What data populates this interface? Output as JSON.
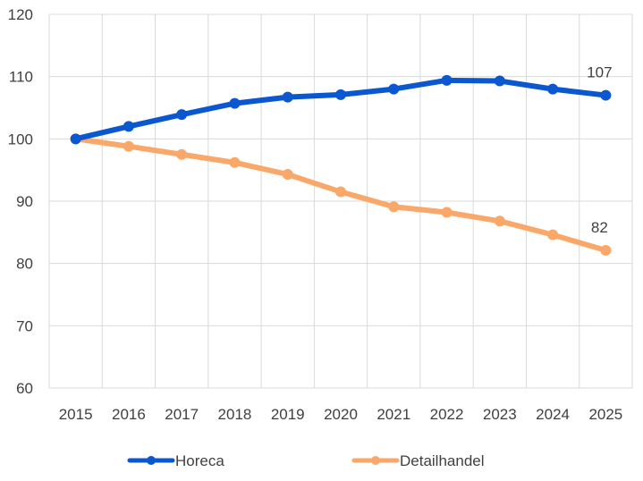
{
  "chart_data": {
    "type": "line",
    "title": "",
    "xlabel": "",
    "ylabel": "",
    "x": [
      2015,
      2016,
      2017,
      2018,
      2019,
      2020,
      2021,
      2022,
      2023,
      2024,
      2025
    ],
    "ylim": [
      60,
      120
    ],
    "yticks": [
      60,
      70,
      80,
      90,
      100,
      110,
      120
    ],
    "grid": true,
    "legend": "bottom",
    "series": [
      {
        "name": "Horeca",
        "color": "#0b57d0",
        "values": [
          100,
          102,
          103.9,
          105.7,
          106.7,
          107.1,
          108,
          109.4,
          109.3,
          108,
          107
        ],
        "end_label": "107"
      },
      {
        "name": "Detailhandel",
        "color": "#f9a86a",
        "values": [
          100,
          98.8,
          97.5,
          96.2,
          94.3,
          91.5,
          89.1,
          88.2,
          86.8,
          84.6,
          82.1
        ],
        "end_label": "82"
      }
    ]
  }
}
